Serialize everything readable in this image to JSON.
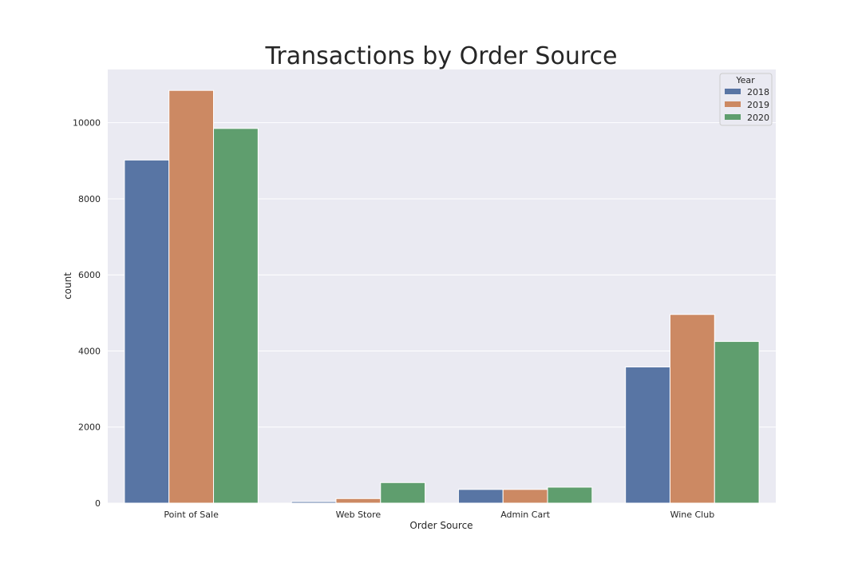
{
  "chart_data": {
    "type": "bar",
    "title": "Transactions by Order Source",
    "xlabel": "Order Source",
    "ylabel": "count",
    "categories": [
      "Point of Sale",
      "Web Store",
      "Admin Cart",
      "Wine Club"
    ],
    "series": [
      {
        "name": "2018",
        "values": [
          9020,
          40,
          360,
          3580
        ],
        "color": "#5875a4"
      },
      {
        "name": "2019",
        "values": [
          10850,
          120,
          360,
          4960
        ],
        "color": "#cc8963"
      },
      {
        "name": "2020",
        "values": [
          9850,
          540,
          420,
          4250
        ],
        "color": "#5f9e6e"
      }
    ],
    "ylim": [
      0,
      11400
    ],
    "yticks": [
      0,
      2000,
      4000,
      6000,
      8000,
      10000
    ],
    "ytick_labels": [
      "0",
      "2000",
      "4000",
      "6000",
      "8000",
      "10000"
    ],
    "legend": {
      "title": "Year",
      "placement": "top-right"
    },
    "grid": true,
    "background_color": "#eaeaf2",
    "grid_color": "#ffffff"
  }
}
